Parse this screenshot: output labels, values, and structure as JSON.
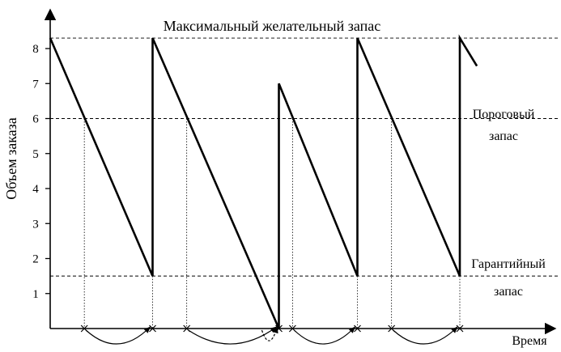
{
  "chart_data": {
    "type": "line",
    "title": "Максимальный желательный запас",
    "xlabel": "Время",
    "ylabel": "Объем заказа",
    "y_ticks": [
      1,
      2,
      3,
      4,
      5,
      6,
      7,
      8
    ],
    "ylim": [
      0,
      9
    ],
    "xlim": [
      0,
      15
    ],
    "grid": false,
    "reference_lines": [
      {
        "name": "max",
        "y": 8.3,
        "label": ""
      },
      {
        "name": "threshold",
        "y": 6.0,
        "label": "Пороговый запас"
      },
      {
        "name": "safety",
        "y": 1.5,
        "label": "Гарантийный запас"
      }
    ],
    "series": [
      {
        "values": [
          [
            0,
            8.3
          ],
          [
            3,
            1.5
          ],
          [
            3,
            8.3
          ],
          [
            6.7,
            0
          ],
          [
            6.7,
            7.0
          ],
          [
            9,
            1.5
          ],
          [
            9,
            8.3
          ],
          [
            12,
            1.5
          ],
          [
            12,
            8.3
          ],
          [
            12.5,
            7.5
          ]
        ]
      }
    ],
    "order_points_x": [
      1.0,
      4.0,
      7.1,
      10.0
    ],
    "delivery_points_x": [
      3.0,
      6.7,
      9.0,
      12.0
    ],
    "late_delivery_x": [
      6.2,
      6.7
    ]
  }
}
